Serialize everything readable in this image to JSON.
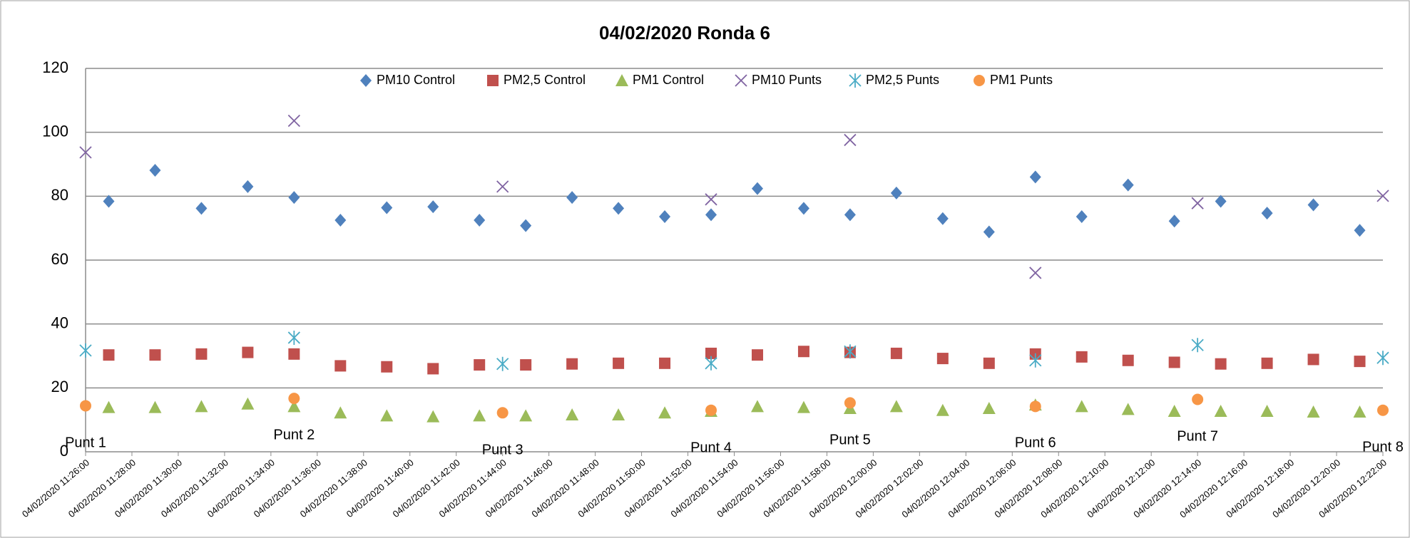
{
  "chart_data": {
    "type": "scatter",
    "title": "04/02/2020 Ronda 6",
    "xlim": [
      "04/02/2020 11:26:00",
      "04/02/2020 12:22:00"
    ],
    "xticks": [
      "04/02/2020 11:26:00",
      "04/02/2020 11:28:00",
      "04/02/2020 11:30:00",
      "04/02/2020 11:32:00",
      "04/02/2020 11:34:00",
      "04/02/2020 11:36:00",
      "04/02/2020 11:38:00",
      "04/02/2020 11:40:00",
      "04/02/2020 11:42:00",
      "04/02/2020 11:44:00",
      "04/02/2020 11:46:00",
      "04/02/2020 11:48:00",
      "04/02/2020 11:50:00",
      "04/02/2020 11:52:00",
      "04/02/2020 11:54:00",
      "04/02/2020 11:56:00",
      "04/02/2020 11:58:00",
      "04/02/2020 12:00:00",
      "04/02/2020 12:02:00",
      "04/02/2020 12:04:00",
      "04/02/2020 12:06:00",
      "04/02/2020 12:08:00",
      "04/02/2020 12:10:00",
      "04/02/2020 12:12:00",
      "04/02/2020 12:14:00",
      "04/02/2020 12:16:00",
      "04/02/2020 12:18:00",
      "04/02/2020 12:20:00",
      "04/02/2020 12:22:00"
    ],
    "ylim": [
      0,
      120
    ],
    "yticks": [
      0,
      20,
      40,
      60,
      80,
      100,
      120
    ],
    "grid": true,
    "legend": "top",
    "control_x": [
      "04/02/2020 11:27:00",
      "04/02/2020 11:29:00",
      "04/02/2020 11:31:00",
      "04/02/2020 11:33:00",
      "04/02/2020 11:35:00",
      "04/02/2020 11:37:00",
      "04/02/2020 11:39:00",
      "04/02/2020 11:41:00",
      "04/02/2020 11:43:00",
      "04/02/2020 11:45:00",
      "04/02/2020 11:47:00",
      "04/02/2020 11:49:00",
      "04/02/2020 11:51:00",
      "04/02/2020 11:53:00",
      "04/02/2020 11:55:00",
      "04/02/2020 11:57:00",
      "04/02/2020 11:59:00",
      "04/02/2020 12:01:00",
      "04/02/2020 12:03:00",
      "04/02/2020 12:05:00",
      "04/02/2020 12:07:00",
      "04/02/2020 12:09:00",
      "04/02/2020 12:11:00",
      "04/02/2020 12:13:00",
      "04/02/2020 12:15:00",
      "04/02/2020 12:17:00",
      "04/02/2020 12:19:00",
      "04/02/2020 12:21:00"
    ],
    "punts_x": [
      "04/02/2020 11:26:00",
      "04/02/2020 11:35:00",
      "04/02/2020 11:44:00",
      "04/02/2020 11:53:00",
      "04/02/2020 11:59:00",
      "04/02/2020 12:07:00",
      "04/02/2020 12:14:00",
      "04/02/2020 12:22:00"
    ],
    "series": [
      {
        "name": "PM10 Control",
        "color": "#4f81bd",
        "marker": "diamond",
        "x_source": "control_x",
        "values": [
          78.4,
          88.1,
          76.2,
          83,
          79.6,
          72.5,
          76.4,
          76.7,
          72.5,
          70.8,
          79.6,
          76.2,
          73.6,
          74.2,
          82.4,
          76.2,
          74.2,
          81,
          73,
          68.8,
          86,
          73.6,
          83.5,
          72.2,
          78.4,
          74.7,
          77.3,
          69.3
        ]
      },
      {
        "name": "PM2,5 Control",
        "color": "#c0504d",
        "marker": "square",
        "x_source": "control_x",
        "values": [
          30.3,
          30.3,
          30.6,
          31.1,
          30.6,
          26.9,
          26.6,
          26,
          27.2,
          27.2,
          27.5,
          27.7,
          27.7,
          30.8,
          30.3,
          31.4,
          31.1,
          30.8,
          29.2,
          27.7,
          30.6,
          29.7,
          28.6,
          28,
          27.5,
          27.7,
          28.9,
          28.3
        ]
      },
      {
        "name": "PM1 Control",
        "color": "#9bbb59",
        "marker": "triangle",
        "x_source": "control_x",
        "values": [
          13.9,
          13.9,
          14.2,
          15,
          14.2,
          12.2,
          11.3,
          11,
          11.3,
          11.3,
          11.6,
          11.6,
          12.2,
          12.7,
          14.2,
          13.9,
          13.6,
          14.2,
          13,
          13.6,
          14.7,
          14.2,
          13.3,
          12.7,
          12.7,
          12.7,
          12.5,
          12.5
        ]
      },
      {
        "name": "PM10 Punts",
        "color": "#8064a2",
        "marker": "x",
        "x_source": "punts_x",
        "values": [
          93.7,
          103.6,
          83,
          79,
          97.6,
          56,
          77.8,
          80.1
        ]
      },
      {
        "name": "PM2,5 Punts",
        "color": "#4bacc6",
        "marker": "star",
        "x_source": "punts_x",
        "values": [
          31.7,
          35.7,
          27.5,
          27.7,
          31.4,
          28.6,
          33.4,
          29.4
        ]
      },
      {
        "name": "PM1 Punts",
        "color": "#f79646",
        "marker": "circle",
        "x_source": "punts_x",
        "values": [
          14.4,
          16.7,
          12.2,
          13,
          15.3,
          14.2,
          16.4,
          13
        ]
      }
    ],
    "annotations": [
      "Punt 1",
      "Punt 2",
      "Punt 3",
      "Punt 4",
      "Punt 5",
      "Punt 6",
      "Punt 7",
      "Punt 8"
    ]
  }
}
